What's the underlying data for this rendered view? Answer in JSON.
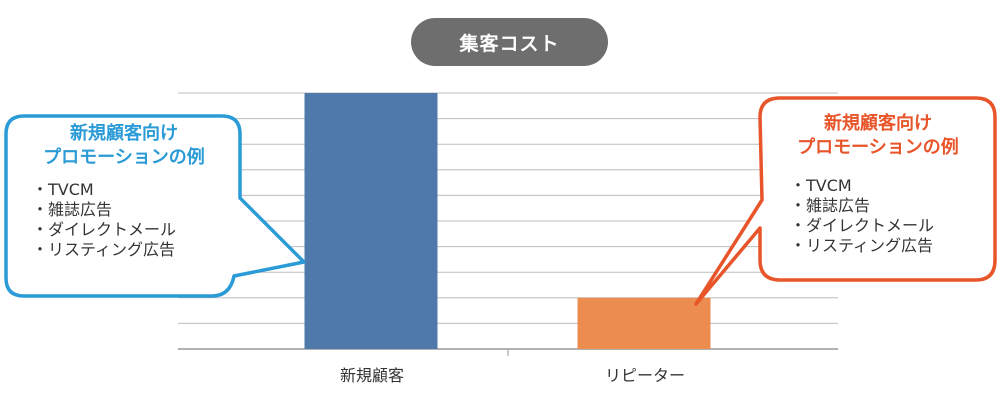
{
  "title": "集客コスト",
  "chart_data": {
    "type": "bar",
    "categories": [
      "新規顧客",
      "リピーター"
    ],
    "values": [
      10,
      2
    ],
    "ylim": [
      0,
      10
    ],
    "grid": true,
    "colors": [
      "#4f78ab",
      "#ec8c4f"
    ]
  },
  "callouts": {
    "new": {
      "title_line1": "新規顧客向け",
      "title_line2": "プロモーションの例",
      "items": [
        "TVCM",
        "雑誌広告",
        "ダイレクトメール",
        "リスティング広告"
      ],
      "color": "#2a9bd6"
    },
    "repeat": {
      "title_line1": "新規顧客向け",
      "title_line2": "プロモーションの例",
      "items": [
        "TVCM",
        "雑誌広告",
        "ダイレクトメール",
        "リスティング広告"
      ],
      "color": "#e8552a"
    }
  }
}
